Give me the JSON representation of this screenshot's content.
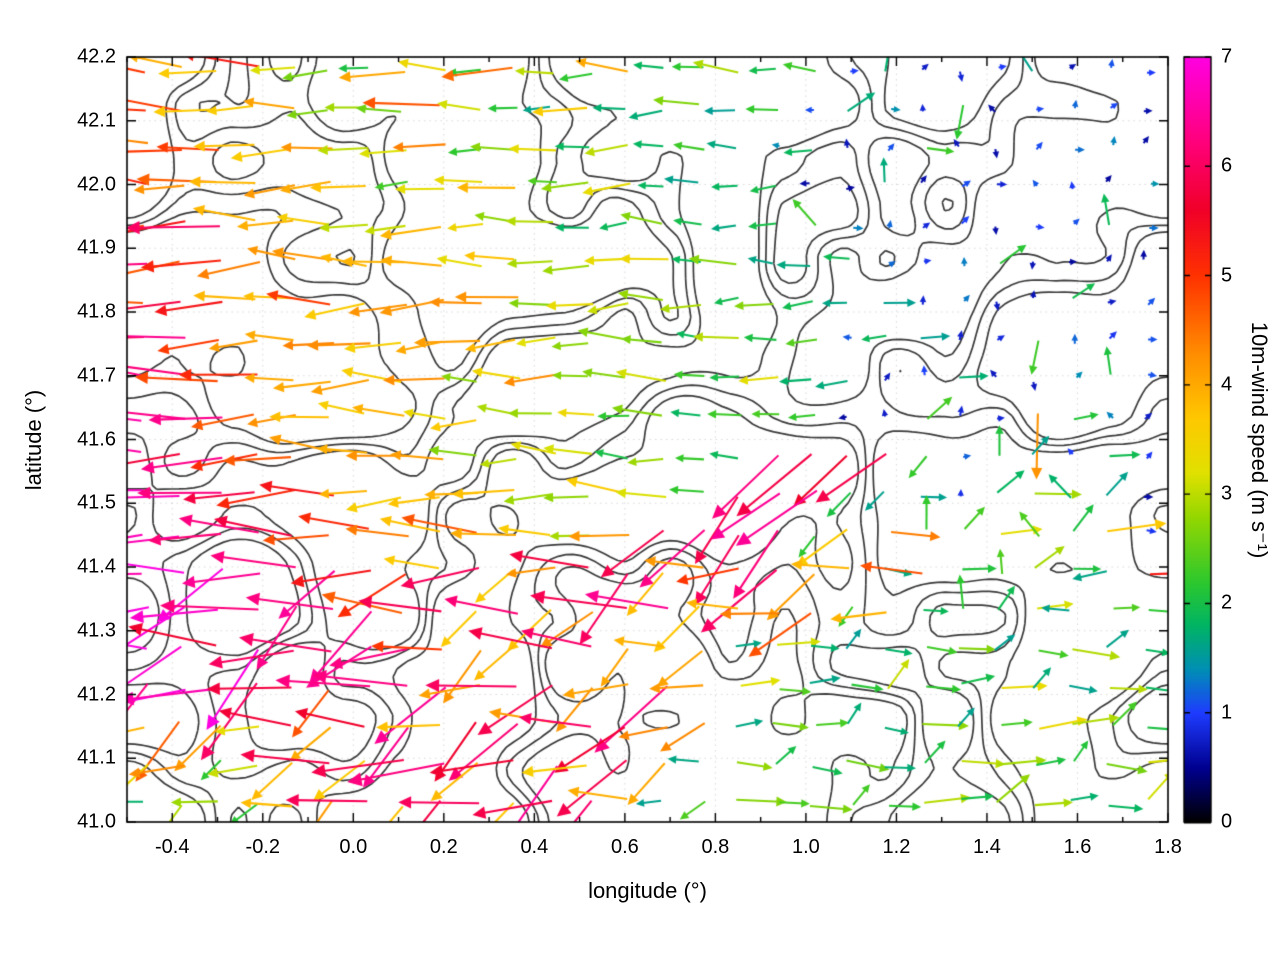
{
  "figure": {
    "background": "#ffffff",
    "frame_color": "#000000",
    "contour_color": "#3a3a3a",
    "x_tick_labels": [
      "-0.4",
      "-0.2",
      "0.0",
      "0.2",
      "0.4",
      "0.6",
      "0.8",
      "1.0",
      "1.2",
      "1.4",
      "1.6",
      "1.8"
    ],
    "x_tick_values": [
      -0.4,
      -0.2,
      0.0,
      0.2,
      0.4,
      0.6,
      0.8,
      1.0,
      1.2,
      1.4,
      1.6,
      1.8
    ],
    "y_tick_labels": [
      "41.0",
      "41.1",
      "41.2",
      "41.3",
      "41.4",
      "41.5",
      "41.6",
      "41.7",
      "41.8",
      "41.9",
      "42.0",
      "42.1",
      "42.2"
    ],
    "y_tick_values": [
      41.0,
      41.1,
      41.2,
      41.3,
      41.4,
      41.5,
      41.6,
      41.7,
      41.8,
      41.9,
      42.0,
      42.1,
      42.2
    ],
    "cb_tick_labels": [
      "0",
      "1",
      "2",
      "3",
      "4",
      "5",
      "6",
      "7"
    ],
    "cb_tick_values": [
      0,
      1,
      2,
      3,
      4,
      5,
      6,
      7
    ]
  },
  "chart_data": {
    "type": "quiver",
    "title": "",
    "xlabel": "longitude (°)",
    "ylabel": "latitude (°)",
    "colorbar_label": "10m-wind speed (m s⁻¹)",
    "xlim": [
      -0.5,
      1.8
    ],
    "ylim": [
      41.0,
      42.2
    ],
    "speed_range": [
      0,
      7
    ],
    "colormap_stops": [
      [
        0,
        "#000000"
      ],
      [
        0.5,
        "#000090"
      ],
      [
        1,
        "#1e3cff"
      ],
      [
        1.4,
        "#008fb4"
      ],
      [
        1.8,
        "#00b464"
      ],
      [
        2.2,
        "#2dc82d"
      ],
      [
        2.8,
        "#96d700"
      ],
      [
        3.2,
        "#e1e100"
      ],
      [
        3.7,
        "#ffc800"
      ],
      [
        4.3,
        "#ff8c00"
      ],
      [
        5,
        "#ff3200"
      ],
      [
        5.6,
        "#f00028"
      ],
      [
        6.2,
        "#ff0078"
      ],
      [
        7,
        "#ff00e1"
      ]
    ],
    "grid": {
      "nx": 28,
      "ny": 20,
      "lon_start": -0.46,
      "dlon": 0.082,
      "lat_start_top": 42.18,
      "dlat": 0.0605
    },
    "dir_code_legend": {
      "0": "E",
      "1": "NE",
      "2": "N",
      "3": "NW",
      "4": "W",
      "5": "SW",
      "6": "S",
      "7": "SE"
    },
    "speed_rows": [
      "5445332432532422322121112111",
      "5544433353224223221211211111",
      "4554443342332322212112111111",
      "5454444233423322221121111111",
      "5564443343332232222111111121",
      "6554444443433332322211121111",
      "5654454444433333232221111211",
      "6654444444433332322122112111",
      "6655444443343332232211211121",
      "7665444434333232222112114211",
      "7665544443333232266662122121",
      "7766554444433432666222123221",
      "7766655445443466662442232241",
      "7776665546446644564425223225",
      "7776666564644664445242223222",
      "7767666654466444232222322322",
      "6776656664664464322232232232",
      "4543646646646644232223223322",
      "3423464664664642322322332233",
      "2332446466466422323223233223"
    ],
    "dir_rows": [
      "4444444444444444444021603120",
      "4444444444444444444102630210",
      "4444444444444444444210361021",
      "4444444444444444444021103210",
      "4444444444444444443021160120",
      "4444444444444444444410216012",
      "4444444444444444444402162101",
      "4444444444444444444440216210",
      "4444444444444444444412036120",
      "4444444444444444444421206031",
      "4444444444444444455555021301",
      "4444444444444444555550210310",
      "4444444444444455555502103100",
      "4454454544544554455404021040",
      "4544545445455445445540210400",
      "4545445445544545000100010010",
      "5445454454455454000010001000",
      "4554454545544545000100100010",
      "5454545445454554010001000100",
      "4545454554545445000100010001"
    ]
  }
}
